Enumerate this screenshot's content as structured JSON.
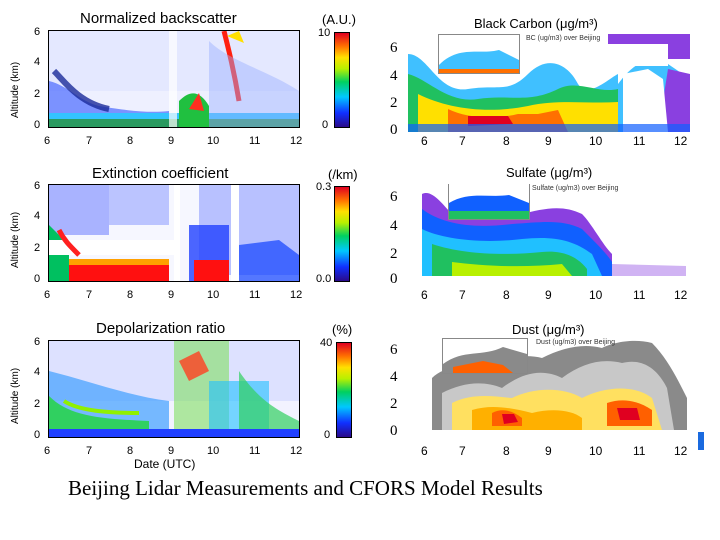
{
  "caption": "Beijing Lidar Measurements   and CFORS Model Results",
  "colors": {
    "low": "#2a0a8a",
    "mid": "#00d060",
    "high": "#e00020",
    "gray": "#8a8a8a"
  },
  "chart_data": [
    {
      "type": "heatmap",
      "title": "Normalized backscatter",
      "unit": "(A.U.)",
      "ylabel": "Altitude (km)",
      "yticks": [
        "6",
        "4",
        "2",
        "0"
      ],
      "xticks": [
        "6",
        "7",
        "8",
        "9",
        "10",
        "11",
        "12"
      ],
      "colorbar": [
        "10",
        "0"
      ],
      "xlabel": ""
    },
    {
      "type": "heatmap",
      "title": "Extinction coefficient",
      "unit": "(/km)",
      "ylabel": "Altitude (km)",
      "yticks": [
        "6",
        "4",
        "2",
        "0"
      ],
      "xticks": [
        "6",
        "7",
        "8",
        "9",
        "10",
        "11",
        "12"
      ],
      "colorbar": [
        "0.3",
        "0.0"
      ],
      "xlabel": ""
    },
    {
      "type": "heatmap",
      "title": "Depolarization ratio",
      "unit": "(%)",
      "ylabel": "Altitude (km)",
      "yticks": [
        "6",
        "4",
        "2",
        "0"
      ],
      "xticks": [
        "6",
        "7",
        "8",
        "9",
        "10",
        "11",
        "12"
      ],
      "colorbar": [
        "40",
        "0"
      ],
      "xlabel": "Date (UTC)"
    },
    {
      "type": "heatmap",
      "title": "Black Carbon (μg/m³)",
      "inset": "BC (ug/m3) over Beijing",
      "yticks": [
        "6",
        "4",
        "2",
        "0"
      ],
      "xticks": [
        "6",
        "7",
        "8",
        "9",
        "10",
        "11",
        "12"
      ]
    },
    {
      "type": "heatmap",
      "title": "Sulfate (μg/m³)",
      "inset": "Sulfate (ug/m3) over Beijing",
      "yticks": [
        "6",
        "4",
        "2",
        "0"
      ],
      "xticks": [
        "6",
        "7",
        "8",
        "9",
        "10",
        "11",
        "12"
      ]
    },
    {
      "type": "heatmap",
      "title": "Dust (μg/m³)",
      "inset": "Dust (ug/m3) over Beijing",
      "yticks": [
        "6",
        "4",
        "2",
        "0"
      ],
      "xticks": [
        "6",
        "7",
        "8",
        "9",
        "10",
        "11",
        "12"
      ]
    }
  ]
}
